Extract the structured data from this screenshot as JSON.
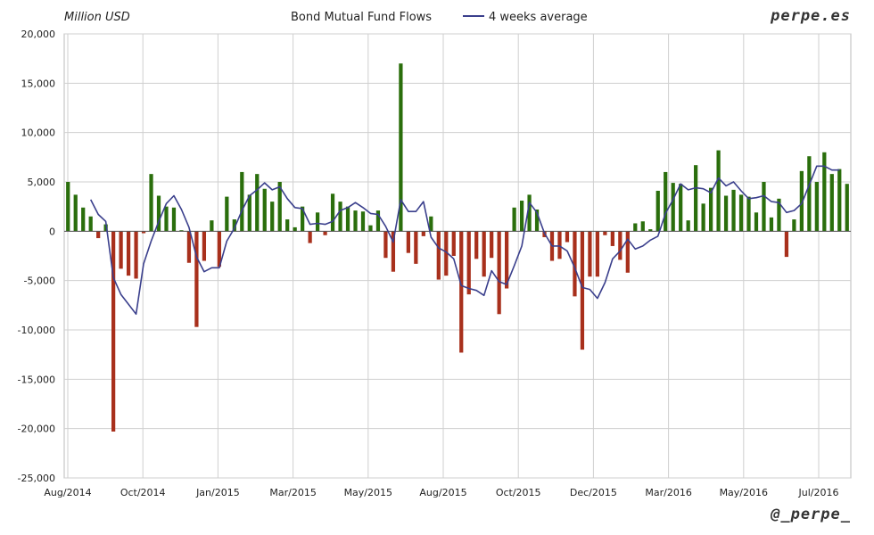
{
  "header": {
    "unit_label": "Million USD",
    "brand": "perpe.es"
  },
  "footer": {
    "handle": "@_perpe_"
  },
  "chart_data": {
    "type": "bar",
    "title": "Bond Mutual Fund Flows",
    "xlabel": "",
    "ylabel": "Million USD",
    "ylim": [
      -25000,
      20000
    ],
    "y_ticks": [
      -25000,
      -20000,
      -15000,
      -10000,
      -5000,
      0,
      5000,
      10000,
      15000,
      20000
    ],
    "y_tick_labels": [
      "-25,000",
      "-20,000",
      "-15,000",
      "-10,000",
      "-5,000",
      "0",
      "5,000",
      "10,000",
      "15,000",
      "20,000"
    ],
    "x_tick_labels": [
      "Aug/2014",
      "Oct/2014",
      "Jan/2015",
      "Mar/2015",
      "May/2015",
      "Aug/2015",
      "Oct/2015",
      "Dec/2015",
      "Mar/2016",
      "May/2016",
      "Jul/2016"
    ],
    "grid": true,
    "colors": {
      "positive": "#2a6e0c",
      "negative": "#a8301c",
      "line": "#3a3f8c",
      "grid": "#cfcfcf"
    },
    "series": [
      {
        "name": "",
        "type": "bar",
        "values": [
          5000,
          3700,
          2400,
          1500,
          -700,
          700,
          -20300,
          -3800,
          -4500,
          -4800,
          -200,
          5800,
          3600,
          2500,
          2400,
          100,
          -3200,
          -9700,
          -3000,
          1100,
          -3600,
          3500,
          1200,
          6000,
          3700,
          5800,
          4300,
          3000,
          5000,
          1200,
          400,
          2500,
          -1200,
          1900,
          -400,
          3800,
          3000,
          2500,
          2100,
          2000,
          600,
          2100,
          -2700,
          -4100,
          17000,
          -2200,
          -3300,
          -500,
          1500,
          -4900,
          -4500,
          -2500,
          -12300,
          -6400,
          -2800,
          -4600,
          -2700,
          -8400,
          -5800,
          2400,
          3100,
          3700,
          2200,
          -600,
          -3000,
          -2800,
          -1100,
          -6600,
          -12000,
          -4600,
          -4600,
          -400,
          -1500,
          -2900,
          -4200,
          800,
          1000,
          200,
          4100,
          6000,
          4900,
          4800,
          1100,
          6700,
          2800,
          4400,
          8200,
          3600,
          4200,
          3700,
          3500,
          1900,
          5000,
          1400,
          3300,
          -2600,
          1200,
          6100,
          7600,
          5000,
          8000,
          5800,
          6300,
          4800
        ]
      },
      {
        "name": "4 weeks average",
        "type": "line",
        "values": [
          null,
          null,
          null,
          3200,
          1700,
          1000,
          -4700,
          -6400,
          -7400,
          -8400,
          -3300,
          -1000,
          1000,
          2800,
          3600,
          2200,
          400,
          -2600,
          -4100,
          -3700,
          -3700,
          -1000,
          300,
          2100,
          3600,
          4200,
          4900,
          4200,
          4500,
          3300,
          2400,
          2300,
          700,
          800,
          700,
          1000,
          2100,
          2400,
          2900,
          2400,
          1800,
          1700,
          500,
          -1100,
          3200,
          2000,
          2000,
          3000,
          -600,
          -1700,
          -2100,
          -2800,
          -5500,
          -5800,
          -6000,
          -6500,
          -4000,
          -5100,
          -5400,
          -3500,
          -1500,
          2900,
          1900,
          -200,
          -1500,
          -1500,
          -2000,
          -3700,
          -5700,
          -5900,
          -6800,
          -5200,
          -2800,
          -2000,
          -800,
          -1800,
          -1500,
          -900,
          -500,
          1800,
          3200,
          4800,
          4200,
          4400,
          4300,
          3900,
          5400,
          4600,
          5000,
          4100,
          3300,
          3400,
          3600,
          3000,
          2900,
          1900,
          2100,
          2800,
          4700,
          6600,
          6600,
          6200,
          6200
        ]
      }
    ]
  }
}
